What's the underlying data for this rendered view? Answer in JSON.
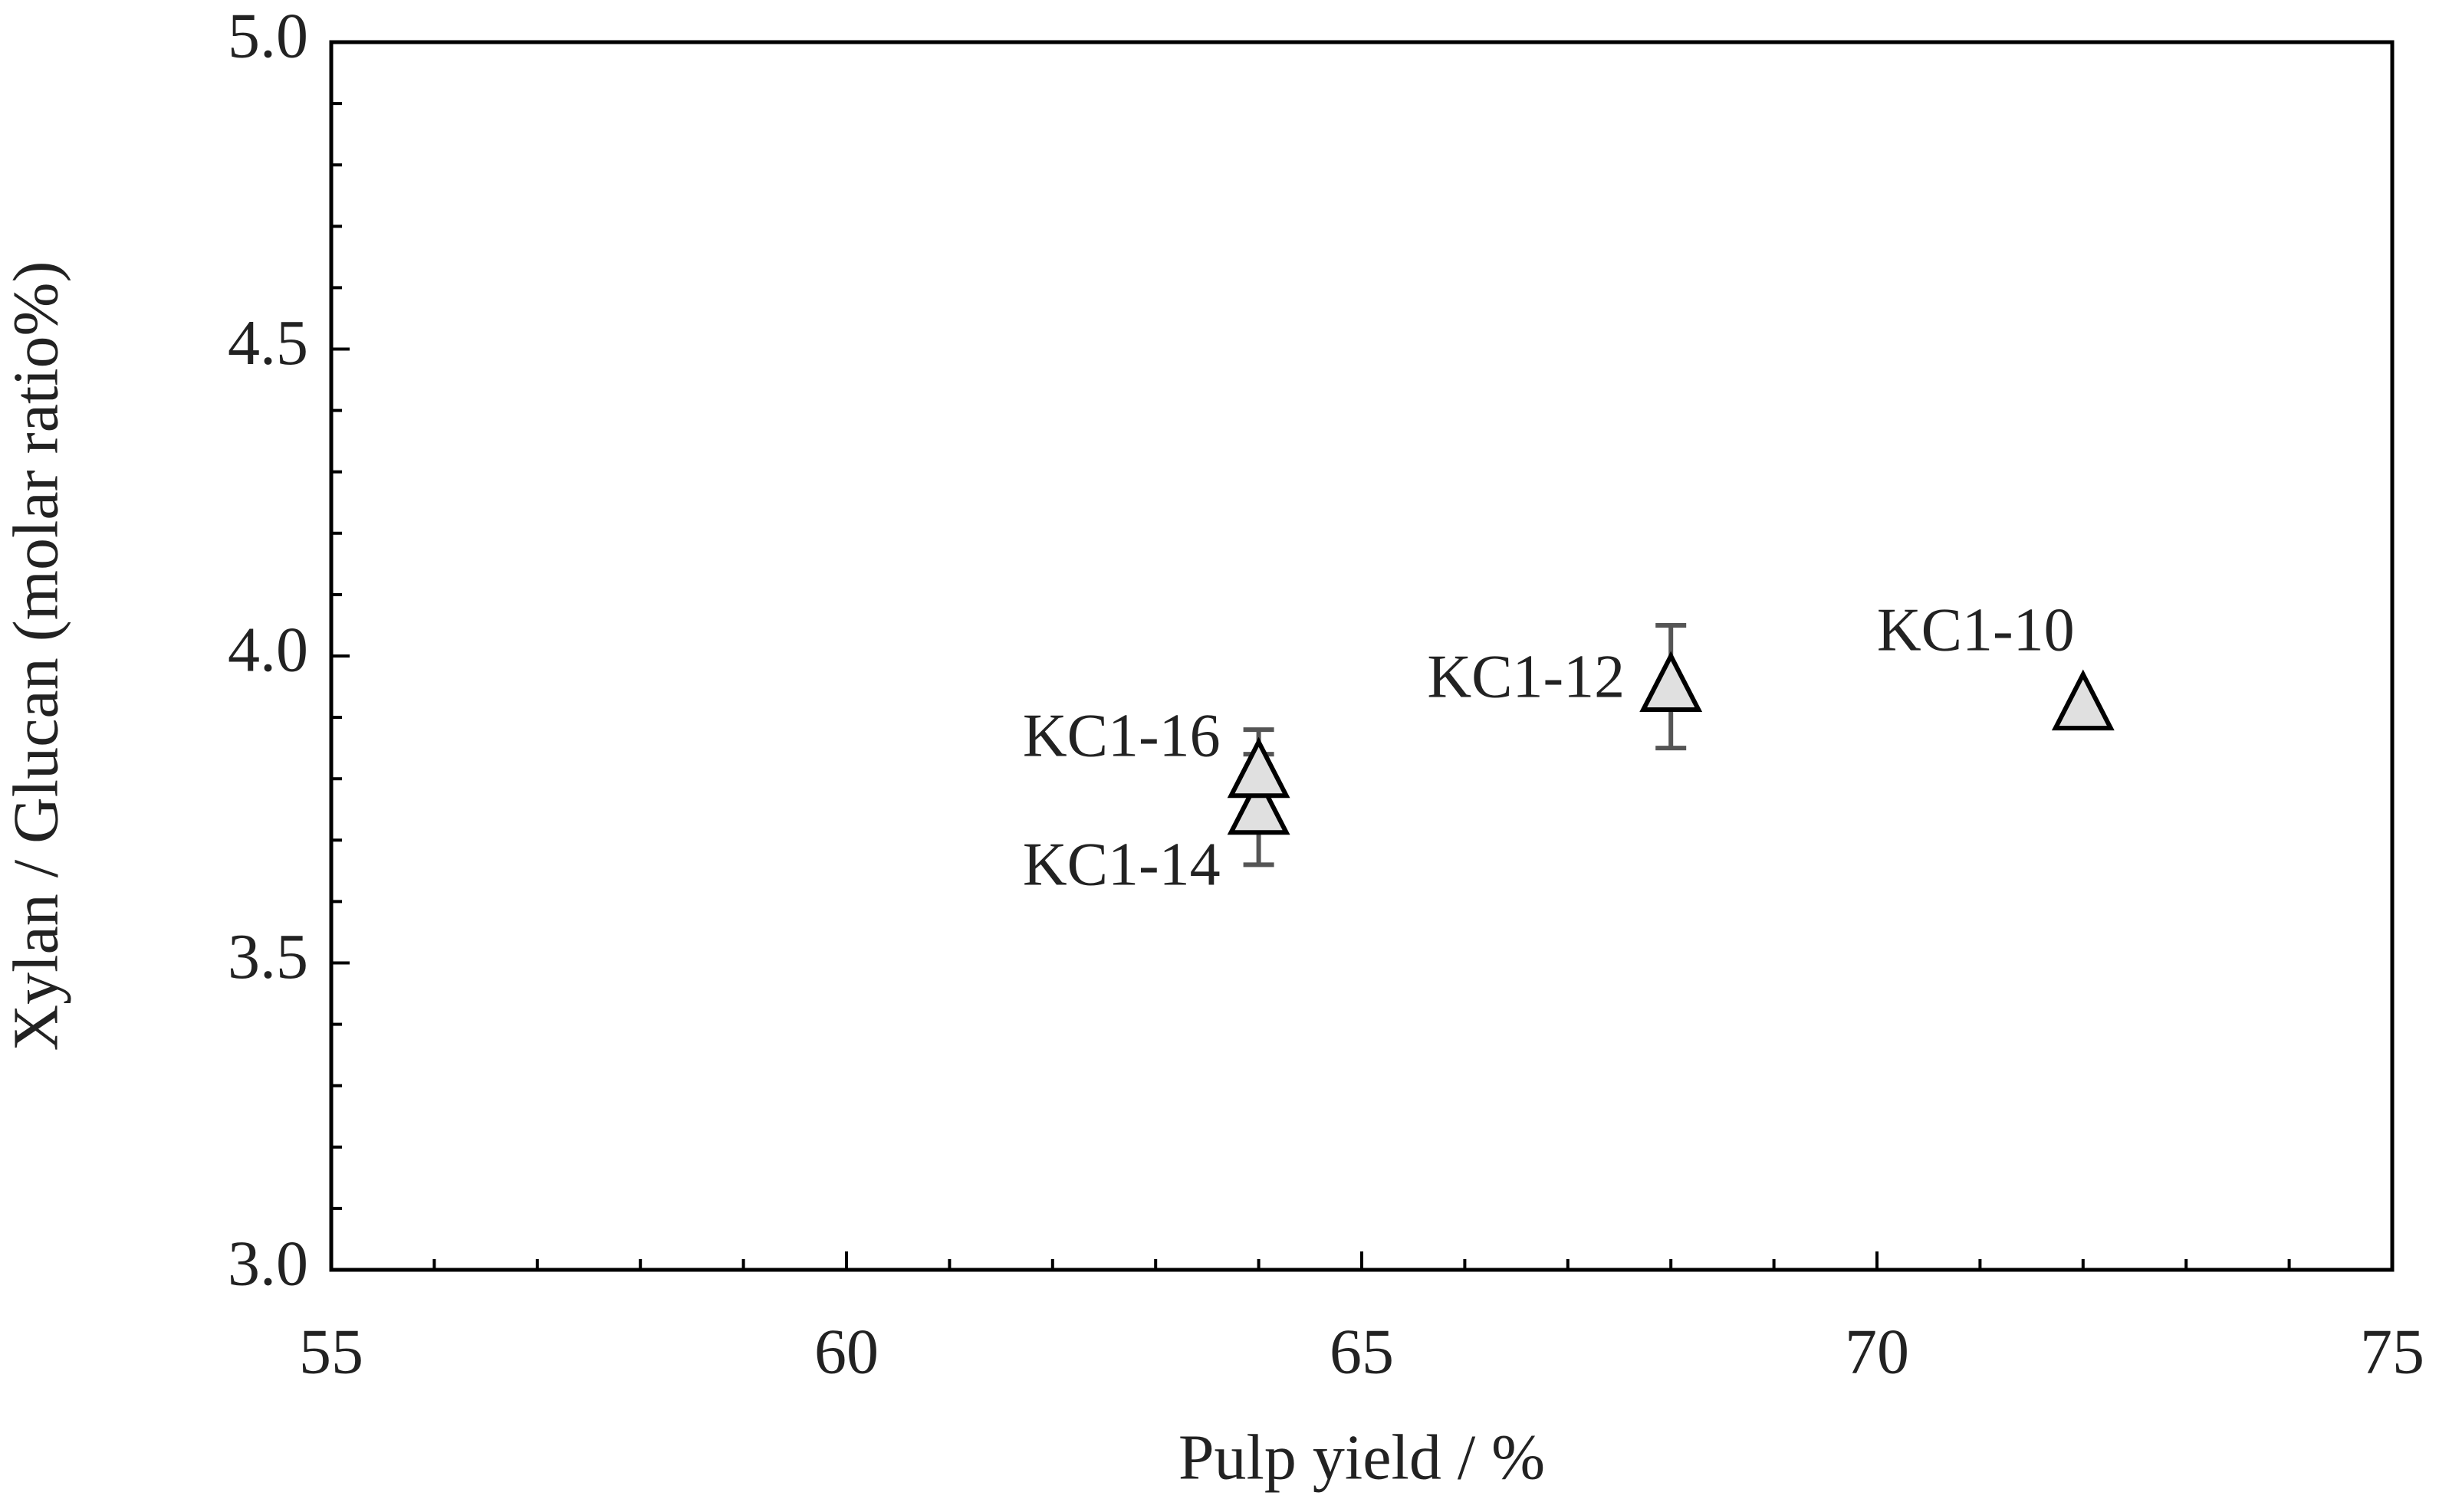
{
  "chart_data": {
    "type": "scatter",
    "x_label": "Pulp yield / %",
    "y_label": "Xylan / Glucan (molar ratio%)",
    "x": [
      72,
      68,
      64,
      64
    ],
    "values": [
      3.92,
      3.95,
      3.75,
      3.81
    ],
    "errors": [
      null,
      0.1,
      0.09,
      0.07
    ],
    "point_labels": [
      "KC1-10",
      "KC1-12",
      "KC1-14",
      "KC1-16"
    ],
    "color": "#e0e0e0",
    "xlim": [
      55,
      75
    ],
    "xticks": [
      55,
      60,
      65,
      70,
      75
    ],
    "ylim": [
      3.0,
      5.0
    ],
    "yticks": [
      {
        "value": 3.0,
        "label": "3.0"
      },
      {
        "value": 3.5,
        "label": "3.5"
      },
      {
        "value": 4.0,
        "label": "4.0"
      },
      {
        "value": 4.5,
        "label": "4.5"
      },
      {
        "value": 5.0,
        "label": "5.0"
      }
    ],
    "grid": false
  }
}
